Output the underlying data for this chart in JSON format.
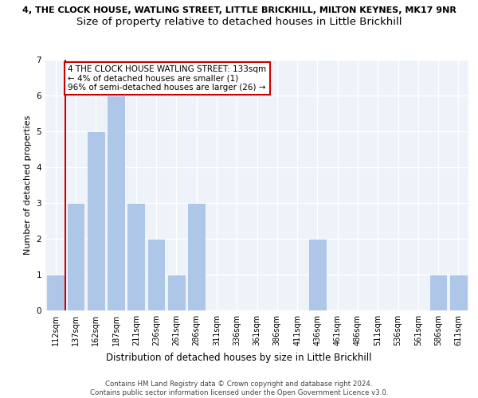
{
  "title1": "4, THE CLOCK HOUSE, WATLING STREET, LITTLE BRICKHILL, MILTON KEYNES, MK17 9NR",
  "title2": "Size of property relative to detached houses in Little Brickhill",
  "xlabel": "Distribution of detached houses by size in Little Brickhill",
  "ylabel": "Number of detached properties",
  "bar_labels": [
    "112sqm",
    "137sqm",
    "162sqm",
    "187sqm",
    "211sqm",
    "236sqm",
    "261sqm",
    "286sqm",
    "311sqm",
    "336sqm",
    "361sqm",
    "386sqm",
    "411sqm",
    "436sqm",
    "461sqm",
    "486sqm",
    "511sqm",
    "536sqm",
    "561sqm",
    "586sqm",
    "611sqm"
  ],
  "values": [
    1,
    3,
    5,
    6,
    3,
    2,
    1,
    3,
    0,
    0,
    0,
    0,
    0,
    2,
    0,
    0,
    0,
    0,
    0,
    1,
    1
  ],
  "bar_color": "#aec6e8",
  "vline_x": 0.5,
  "annotation_text": "4 THE CLOCK HOUSE WATLING STREET: 133sqm\n← 4% of detached houses are smaller (1)\n96% of semi-detached houses are larger (26) →",
  "footnote": "Contains HM Land Registry data © Crown copyright and database right 2024.\nContains public sector information licensed under the Open Government Licence v3.0.",
  "ylim": [
    0,
    7
  ],
  "yticks": [
    0,
    1,
    2,
    3,
    4,
    5,
    6,
    7
  ],
  "bg_color": "#eef3f9",
  "grid_color": "#ffffff",
  "annotation_box_color": "#cc0000",
  "title1_fontsize": 8,
  "title2_fontsize": 9.5,
  "xlabel_fontsize": 8.5,
  "ylabel_fontsize": 8,
  "tick_fontsize": 7,
  "annot_fontsize": 7.5
}
